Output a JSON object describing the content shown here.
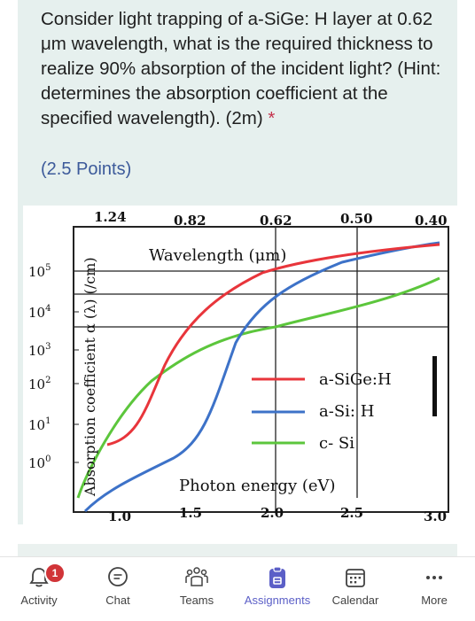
{
  "question": {
    "text": "Consider light trapping of a-SiGe: H layer at 0.62 μm wavelength, what is the required thickness to realize 90% absorption of the incident light? (Hint: determines the absorption coefficient at the specified wavelength). (2m)",
    "required_mark": "*",
    "points": "(2.5 Points)"
  },
  "figure": {
    "top_axis_label": "Wavelength (μm)",
    "bottom_axis_label": "Photon energy (eV)",
    "y_axis_label": "Absorption coefficient α (λ) (/cm)",
    "top_ticks": [
      "1.24",
      "0.82",
      "0.62",
      "0.50",
      "0.40"
    ],
    "bottom_ticks": [
      "1.0",
      "1.5",
      "2.0",
      "2.5",
      "3.0"
    ],
    "y_ticks": [
      {
        "base": "10",
        "exp": "5"
      },
      {
        "base": "10",
        "exp": "4"
      },
      {
        "base": "10",
        "exp": "3"
      },
      {
        "base": "10",
        "exp": "2"
      },
      {
        "base": "10",
        "exp": "1"
      },
      {
        "base": "10",
        "exp": "0"
      }
    ],
    "legend": [
      {
        "name": "a-SiGe:H",
        "color": "#e8353b"
      },
      {
        "name": "a-Si: H",
        "color": "#3d72c8"
      },
      {
        "name": "c- Si",
        "color": "#5cc63c"
      }
    ]
  },
  "tabs": [
    {
      "label": "Activity",
      "icon": "bell-icon",
      "badge": "1"
    },
    {
      "label": "Chat",
      "icon": "chat-icon"
    },
    {
      "label": "Teams",
      "icon": "teams-icon"
    },
    {
      "label": "Assignments",
      "icon": "assignments-icon",
      "active": true
    },
    {
      "label": "Calendar",
      "icon": "calendar-icon"
    },
    {
      "label": "More",
      "icon": "more-icon"
    }
  ],
  "colors": {
    "accent": "#5b5fc7",
    "badge": "#d13438",
    "card_bg": "#e6f0ee"
  }
}
